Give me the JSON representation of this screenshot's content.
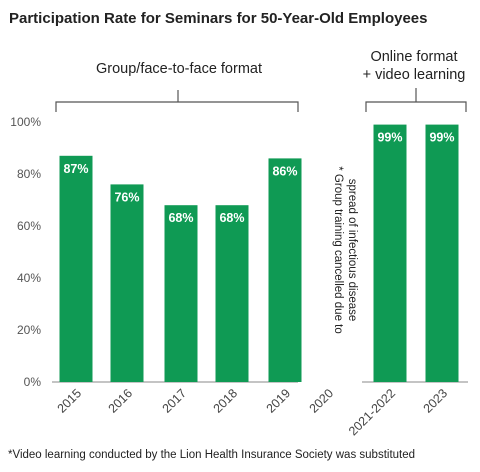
{
  "title": "Participation Rate for Seminars for 50-Year-Old Employees",
  "groups": [
    {
      "label": "Group/face-to-face format"
    },
    {
      "label_line1": "Online format",
      "label_line2": "+ video learning"
    }
  ],
  "vertical_note_line1": "* Group training cancelled due to",
  "vertical_note_line2": "spread of infectious disease",
  "footnote": "*Video learning conducted by the Lion Health Insurance Society was substituted",
  "colors": {
    "bar": "#0f9a54",
    "axis": "#888888",
    "bracket": "#555555"
  },
  "chart_data": {
    "type": "bar",
    "categories": [
      "2015",
      "2016",
      "2017",
      "2018",
      "2019",
      "2020",
      "2021-2022",
      "2023"
    ],
    "values": [
      87,
      76,
      68,
      68,
      86,
      null,
      99,
      99
    ],
    "data_labels": [
      "87%",
      "76%",
      "68%",
      "68%",
      "86%",
      "",
      "99%",
      "99%"
    ],
    "ytick_labels": [
      "0%",
      "20%",
      "40%",
      "60%",
      "80%",
      "100%"
    ],
    "yticks": [
      0,
      20,
      40,
      60,
      80,
      100
    ],
    "ylim": [
      0,
      100
    ],
    "xlabel": "",
    "ylabel": "",
    "grid": false,
    "legend": "none"
  }
}
